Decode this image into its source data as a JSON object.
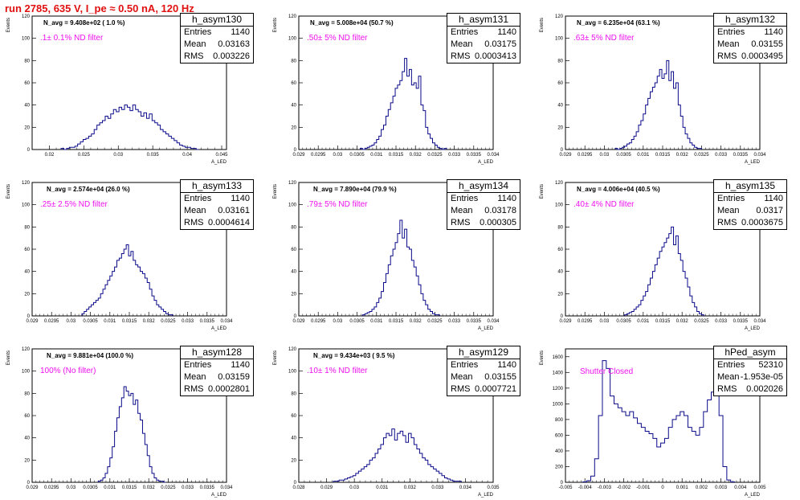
{
  "title": "run 2785,   635 V, I_pe ≈ 0.50 nA, 120 Hz",
  "colors": {
    "title": "#e01010",
    "hist": "#0a0a8a",
    "filter_label": "#ee10ee"
  },
  "chart_data": [
    {
      "type": "bar",
      "name": "h_asym130",
      "n_avg": "N_avg = 9.408e+02 ( 1.0 %)",
      "filter": ".1± 0.1% ND filter",
      "stats": {
        "entries": "1140",
        "mean": "0.03163",
        "rms": "0.003226"
      },
      "ylabel": "Events",
      "xlabel": "A_LED",
      "xlim": [
        0.0175,
        0.0457
      ],
      "ylim": [
        0,
        120
      ],
      "xticks": [
        "0.02",
        "0.025",
        "0.03",
        "0.035",
        "0.04",
        "0.045"
      ],
      "yticks": [
        "0",
        "20",
        "40",
        "60",
        "80",
        "100",
        "120"
      ],
      "x": [
        0.0219,
        0.0223,
        0.0227,
        0.0231,
        0.0235,
        0.0239,
        0.0243,
        0.0247,
        0.0251,
        0.0255,
        0.0259,
        0.0263,
        0.0267,
        0.0271,
        0.0275,
        0.0279,
        0.0283,
        0.0287,
        0.0291,
        0.0295,
        0.0299,
        0.0303,
        0.0307,
        0.0311,
        0.0315,
        0.0319,
        0.0323,
        0.0327,
        0.0331,
        0.0335,
        0.0339,
        0.0343,
        0.0347,
        0.0351,
        0.0355,
        0.0359,
        0.0363,
        0.0367,
        0.0371,
        0.0375,
        0.0379,
        0.0383,
        0.0387,
        0.0391,
        0.0395,
        0.0399,
        0.0403,
        0.0407,
        0.0411,
        0.0415
      ],
      "values": [
        1,
        0,
        1,
        2,
        2,
        3,
        5,
        7,
        9,
        10,
        12,
        14,
        18,
        22,
        24,
        26,
        30,
        28,
        32,
        36,
        34,
        38,
        36,
        40,
        38,
        35,
        40,
        36,
        34,
        30,
        33,
        28,
        32,
        26,
        24,
        22,
        18,
        16,
        14,
        12,
        10,
        8,
        6,
        4,
        3,
        2,
        2,
        1,
        1,
        0
      ]
    },
    {
      "type": "bar",
      "name": "h_asym131",
      "n_avg": "N_avg = 5.008e+04 (50.7 %)",
      "filter": ".50± 5% ND filter",
      "stats": {
        "entries": "1140",
        "mean": "0.03175",
        "rms": "0.0003413"
      },
      "ylabel": "Events",
      "xlabel": "A_LED",
      "xlim": [
        0.029,
        0.034
      ],
      "ylim": [
        0,
        120
      ],
      "xticks": [
        "0.029",
        "0.0295",
        "0.03",
        "0.0305",
        "0.031",
        "0.0315",
        "0.032",
        "0.0325",
        "0.033",
        "0.0335",
        "0.034"
      ],
      "yticks": [
        "0",
        "20",
        "40",
        "60",
        "80",
        "100",
        "120"
      ],
      "x": [
        0.03061,
        0.03067,
        0.03073,
        0.03079,
        0.03085,
        0.03091,
        0.03097,
        0.03103,
        0.03109,
        0.03115,
        0.03121,
        0.03127,
        0.03133,
        0.03139,
        0.03145,
        0.03151,
        0.03157,
        0.03163,
        0.03169,
        0.03175,
        0.03181,
        0.03187,
        0.03193,
        0.03199,
        0.03205,
        0.03211,
        0.03217,
        0.03223,
        0.03229,
        0.03235,
        0.03241,
        0.03247,
        0.03253,
        0.03259,
        0.03265,
        0.03271,
        0.03277
      ],
      "values": [
        1,
        0,
        1,
        2,
        3,
        4,
        6,
        9,
        12,
        18,
        22,
        30,
        36,
        42,
        48,
        55,
        58,
        62,
        70,
        82,
        66,
        72,
        58,
        60,
        55,
        66,
        40,
        35,
        20,
        14,
        10,
        6,
        4,
        2,
        1,
        0,
        1
      ]
    },
    {
      "type": "bar",
      "name": "h_asym132",
      "n_avg": "N_avg = 6.235e+04 (63.1 %)",
      "filter": ".63± 5% ND filter",
      "stats": {
        "entries": "1140",
        "mean": "0.03155",
        "rms": "0.0003495"
      },
      "ylabel": "Events",
      "xlabel": "A_LED",
      "xlim": [
        0.029,
        0.034
      ],
      "ylim": [
        0,
        120
      ],
      "xticks": [
        "0.029",
        "0.0295",
        "0.03",
        "0.0305",
        "0.031",
        "0.0315",
        "0.032",
        "0.0325",
        "0.033",
        "0.0335",
        "0.034"
      ],
      "yticks": [
        "0",
        "20",
        "40",
        "60",
        "80",
        "100",
        "120"
      ],
      "x": [
        0.03031,
        0.03037,
        0.03043,
        0.03049,
        0.03055,
        0.03061,
        0.03067,
        0.03073,
        0.03079,
        0.03085,
        0.03091,
        0.03097,
        0.03103,
        0.03109,
        0.03115,
        0.03121,
        0.03127,
        0.03133,
        0.03139,
        0.03145,
        0.03151,
        0.03157,
        0.03163,
        0.03169,
        0.03175,
        0.03181,
        0.03187,
        0.03193,
        0.03199,
        0.03205,
        0.03211,
        0.03217,
        0.03223,
        0.03229,
        0.03235,
        0.03241,
        0.03247
      ],
      "values": [
        1,
        0,
        1,
        2,
        3,
        5,
        6,
        9,
        12,
        16,
        22,
        26,
        32,
        40,
        46,
        52,
        56,
        60,
        66,
        72,
        64,
        68,
        80,
        62,
        70,
        55,
        60,
        40,
        30,
        20,
        14,
        10,
        6,
        4,
        2,
        1,
        1
      ]
    },
    {
      "type": "bar",
      "name": "h_asym133",
      "n_avg": "N_avg = 2.574e+04 (26.0 %)",
      "filter": ".25± 2.5% ND filter",
      "stats": {
        "entries": "1140",
        "mean": "0.03161",
        "rms": "0.0004614"
      },
      "ylabel": "Events",
      "xlabel": "A_LED",
      "xlim": [
        0.029,
        0.034
      ],
      "ylim": [
        0,
        120
      ],
      "xticks": [
        "0.029",
        "0.0295",
        "0.03",
        "0.0305",
        "0.031",
        "0.0315",
        "0.032",
        "0.0325",
        "0.033",
        "0.0335",
        "0.034"
      ],
      "yticks": [
        "0",
        "20",
        "40",
        "60",
        "80",
        "100",
        "120"
      ],
      "x": [
        0.03031,
        0.03037,
        0.03043,
        0.03049,
        0.03055,
        0.03061,
        0.03067,
        0.03073,
        0.03079,
        0.03085,
        0.03091,
        0.03097,
        0.03103,
        0.03109,
        0.03115,
        0.03121,
        0.03127,
        0.03133,
        0.03139,
        0.03145,
        0.03151,
        0.03157,
        0.03163,
        0.03169,
        0.03175,
        0.03181,
        0.03187,
        0.03193,
        0.03199,
        0.03205,
        0.03211,
        0.03217,
        0.03223,
        0.03229,
        0.03235,
        0.03241,
        0.03247,
        0.03253,
        0.03259
      ],
      "values": [
        2,
        4,
        6,
        8,
        10,
        12,
        14,
        16,
        20,
        24,
        28,
        32,
        36,
        40,
        44,
        50,
        52,
        56,
        60,
        64,
        54,
        58,
        50,
        46,
        44,
        40,
        38,
        34,
        30,
        24,
        18,
        14,
        10,
        8,
        6,
        4,
        2,
        1,
        1
      ]
    },
    {
      "type": "bar",
      "name": "h_asym134",
      "n_avg": "N_avg = 7.890e+04 (79.9 %)",
      "filter": ".79± 5% ND filter",
      "stats": {
        "entries": "1140",
        "mean": "0.03178",
        "rms": "0.000305"
      },
      "ylabel": "Events",
      "xlabel": "A_LED",
      "xlim": [
        0.029,
        0.034
      ],
      "ylim": [
        0,
        120
      ],
      "xticks": [
        "0.029",
        "0.0295",
        "0.03",
        "0.0305",
        "0.031",
        "0.0315",
        "0.032",
        "0.0325",
        "0.033",
        "0.0335",
        "0.034"
      ],
      "yticks": [
        "0",
        "20",
        "40",
        "60",
        "80",
        "100",
        "120"
      ],
      "x": [
        0.03067,
        0.03073,
        0.03079,
        0.03085,
        0.03091,
        0.03097,
        0.03103,
        0.03109,
        0.03115,
        0.03121,
        0.03127,
        0.03133,
        0.03139,
        0.03145,
        0.03151,
        0.03157,
        0.03163,
        0.03169,
        0.03175,
        0.03181,
        0.03187,
        0.03193,
        0.03199,
        0.03205,
        0.03211,
        0.03217,
        0.03223,
        0.03229,
        0.03235,
        0.03241,
        0.03247,
        0.03253,
        0.03259
      ],
      "values": [
        1,
        2,
        3,
        4,
        6,
        8,
        12,
        16,
        22,
        30,
        38,
        46,
        54,
        60,
        66,
        74,
        86,
        70,
        78,
        62,
        60,
        50,
        44,
        36,
        28,
        20,
        14,
        10,
        6,
        4,
        2,
        1,
        1
      ]
    },
    {
      "type": "bar",
      "name": "h_asym135",
      "n_avg": "N_avg = 4.006e+04 (40.5 %)",
      "filter": ".40± 4% ND filter",
      "stats": {
        "entries": "1140",
        "mean": "0.0317",
        "rms": "0.0003675"
      },
      "ylabel": "Events",
      "xlabel": "A_LED",
      "xlim": [
        0.029,
        0.034
      ],
      "ylim": [
        0,
        120
      ],
      "xticks": [
        "0.029",
        "0.0295",
        "0.03",
        "0.0305",
        "0.031",
        "0.0315",
        "0.032",
        "0.0325",
        "0.033",
        "0.0335",
        "0.034"
      ],
      "yticks": [
        "0",
        "20",
        "40",
        "60",
        "80",
        "100",
        "120"
      ],
      "x": [
        0.03055,
        0.03061,
        0.03067,
        0.03073,
        0.03079,
        0.03085,
        0.03091,
        0.03097,
        0.03103,
        0.03109,
        0.03115,
        0.03121,
        0.03127,
        0.03133,
        0.03139,
        0.03145,
        0.03151,
        0.03157,
        0.03163,
        0.03169,
        0.03175,
        0.03181,
        0.03187,
        0.03193,
        0.03199,
        0.03205,
        0.03211,
        0.03217,
        0.03223,
        0.03229,
        0.03235,
        0.03241,
        0.03247,
        0.03253
      ],
      "values": [
        1,
        2,
        3,
        4,
        6,
        8,
        10,
        14,
        18,
        22,
        28,
        34,
        40,
        46,
        52,
        58,
        62,
        66,
        70,
        74,
        80,
        64,
        72,
        56,
        50,
        40,
        34,
        26,
        18,
        12,
        8,
        4,
        2,
        1
      ]
    },
    {
      "type": "bar",
      "name": "h_asym128",
      "n_avg": "N_avg = 9.881e+04 (100.0 %)",
      "filter": "100% (No filter)",
      "stats": {
        "entries": "1140",
        "mean": "0.03159",
        "rms": "0.0002801"
      },
      "ylabel": "Events",
      "xlabel": "A_LED",
      "xlim": [
        0.029,
        0.034
      ],
      "ylim": [
        0,
        120
      ],
      "xticks": [
        "0.029",
        "0.0295",
        "0.03",
        "0.0305",
        "0.031",
        "0.0315",
        "0.032",
        "0.0325",
        "0.033",
        "0.0335",
        "0.034"
      ],
      "yticks": [
        "0",
        "20",
        "40",
        "60",
        "80",
        "100",
        "120"
      ],
      "x": [
        0.03073,
        0.03079,
        0.03085,
        0.03091,
        0.03097,
        0.03103,
        0.03109,
        0.03115,
        0.03121,
        0.03127,
        0.03133,
        0.03139,
        0.03145,
        0.03151,
        0.03157,
        0.03163,
        0.03169,
        0.03175,
        0.03181,
        0.03187,
        0.03193,
        0.03199,
        0.03205,
        0.03211,
        0.03217,
        0.03223,
        0.03229,
        0.03235,
        0.03241
      ],
      "values": [
        1,
        2,
        4,
        8,
        14,
        22,
        32,
        46,
        58,
        68,
        76,
        86,
        82,
        78,
        80,
        70,
        74,
        62,
        56,
        44,
        34,
        24,
        14,
        8,
        4,
        2,
        1,
        1,
        0
      ]
    },
    {
      "type": "bar",
      "name": "h_asym129",
      "n_avg": "N_avg = 9.434e+03 ( 9.5 %)",
      "filter": ".10± 1% ND filter",
      "stats": {
        "entries": "1140",
        "mean": "0.03155",
        "rms": "0.0007721"
      },
      "ylabel": "Events",
      "xlabel": "A_LED",
      "xlim": [
        0.028,
        0.035
      ],
      "ylim": [
        0,
        120
      ],
      "xticks": [
        "0.028",
        "0.029",
        "0.03",
        "0.031",
        "0.032",
        "0.033",
        "0.034",
        "0.035"
      ],
      "yticks": [
        "0",
        "20",
        "40",
        "60",
        "80",
        "100",
        "120"
      ],
      "x": [
        0.0293,
        0.0294,
        0.0295,
        0.0296,
        0.0297,
        0.0298,
        0.0299,
        0.03,
        0.0301,
        0.0302,
        0.0303,
        0.0304,
        0.0305,
        0.0306,
        0.0307,
        0.0308,
        0.0309,
        0.031,
        0.0311,
        0.0312,
        0.0313,
        0.0314,
        0.0315,
        0.0316,
        0.0317,
        0.0318,
        0.0319,
        0.032,
        0.0321,
        0.0322,
        0.0323,
        0.0324,
        0.0325,
        0.0326,
        0.0327,
        0.0328,
        0.0329,
        0.033,
        0.0331,
        0.0332,
        0.0333,
        0.0334,
        0.0335,
        0.0336,
        0.0337,
        0.0338
      ],
      "values": [
        1,
        1,
        2,
        2,
        3,
        4,
        5,
        6,
        8,
        10,
        12,
        14,
        16,
        20,
        22,
        26,
        30,
        34,
        40,
        44,
        42,
        48,
        38,
        44,
        46,
        42,
        36,
        44,
        40,
        34,
        30,
        26,
        22,
        20,
        16,
        14,
        12,
        10,
        8,
        6,
        4,
        3,
        2,
        1,
        1,
        1
      ]
    },
    {
      "type": "bar",
      "name": "hPed_asym",
      "n_avg": "",
      "filter": "Shutter Closed",
      "stats": {
        "entries": "52310",
        "mean": "-1.953e-05",
        "rms": "0.002026"
      },
      "ylabel": "Events",
      "xlabel": "A_LED",
      "xlim": [
        -0.005,
        0.005
      ],
      "ylim": [
        0,
        1700
      ],
      "xticks": [
        "-0.005",
        "-0.004",
        "-0.003",
        "-0.002",
        "-0.001",
        "0",
        "0.001",
        "0.002",
        "0.003",
        "0.004",
        "0.005"
      ],
      "yticks": [
        "0",
        "200",
        "400",
        "600",
        "800",
        "1000",
        "1200",
        "1400",
        "1600"
      ],
      "x": [
        -0.004,
        -0.0038,
        -0.0036,
        -0.0034,
        -0.0032,
        -0.003,
        -0.0028,
        -0.0026,
        -0.0024,
        -0.0022,
        -0.002,
        -0.0018,
        -0.0016,
        -0.0014,
        -0.0012,
        -0.001,
        -0.0008,
        -0.0006,
        -0.0004,
        -0.0002,
        0,
        0.0002,
        0.0004,
        0.0006,
        0.0008,
        0.001,
        0.0012,
        0.0014,
        0.0016,
        0.0018,
        0.002,
        0.0022,
        0.0024,
        0.0026,
        0.0028,
        0.003,
        0.0032,
        0.0034,
        0.0036
      ],
      "values": [
        5,
        20,
        80,
        300,
        850,
        1550,
        1450,
        1100,
        1000,
        950,
        900,
        850,
        900,
        820,
        750,
        700,
        650,
        620,
        560,
        450,
        500,
        560,
        700,
        800,
        850,
        900,
        850,
        700,
        650,
        600,
        700,
        900,
        1050,
        1150,
        1250,
        850,
        200,
        30,
        5
      ]
    }
  ]
}
